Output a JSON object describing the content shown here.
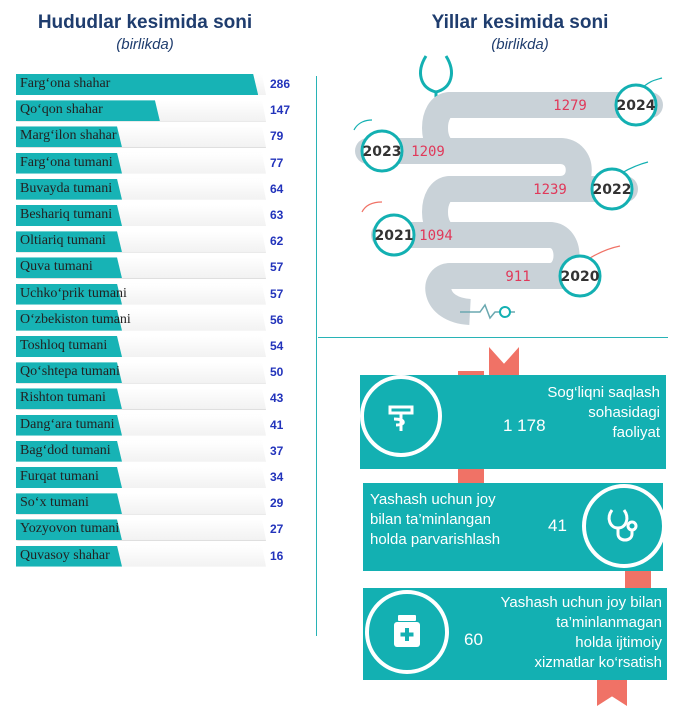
{
  "left": {
    "title": "Hududlar kesimida soni",
    "subtitle": "(birlikda)"
  },
  "right": {
    "title": "Yillar kesimida soni",
    "subtitle": "(birlikda)"
  },
  "colors": {
    "teal": "#17b3b5",
    "title_blue": "#1f3d6e",
    "value_blue": "#2233bb",
    "year_value_red": "#e0395a",
    "ribbon_coral": "#f07266",
    "timeline_grey": "#c9d2d8"
  },
  "chart_data": [
    {
      "type": "bar",
      "orientation": "horizontal",
      "title": "Hududlar kesimida soni",
      "subtitle": "(birlikda)",
      "categories": [
        "Farg‘ona shahar",
        "Qo‘qon shahar",
        "Marg‘ilon shahar",
        "Farg‘ona tumani",
        "Buvayda tumani",
        "Beshariq tumani",
        "Oltiariq tumani",
        "Quva tumani",
        "Uchko‘prik tumani",
        "O‘zbekiston tumani",
        "Toshloq tumani",
        "Qo‘shtepa tumani",
        "Rishton tumani",
        "Dang‘ara tumani",
        "Bag‘dod tumani",
        "Furqat tumani",
        "So‘x tumani",
        "Yozyovon tumani",
        "Quvasoy shahar"
      ],
      "values": [
        286,
        147,
        79,
        77,
        64,
        63,
        62,
        57,
        57,
        56,
        54,
        50,
        43,
        41,
        37,
        34,
        29,
        27,
        16
      ],
      "grid": false
    },
    {
      "type": "line",
      "title": "Yillar kesimida soni",
      "subtitle": "(birlikda)",
      "x": [
        "2024",
        "2023",
        "2022",
        "2021",
        "2020"
      ],
      "values": [
        1279,
        1209,
        1239,
        1094,
        911
      ],
      "value_labels": [
        "1279",
        "1209",
        "1239",
        "1094",
        "911"
      ]
    }
  ],
  "activities": [
    {
      "value": "1 178",
      "label_lines": [
        "Sog‘liqni saqlash",
        "sohasidagi",
        "faoliyat"
      ],
      "icon": "medical-caduceus-icon"
    },
    {
      "value": "41",
      "label_lines": [
        "Yashash uchun joy",
        "bilan ta’minlangan",
        "holda parvarishlash"
      ],
      "icon": "stethoscope-icon"
    },
    {
      "value": "60",
      "label_lines": [
        "Yashash uchun joy bilan",
        "ta’minlanmagan",
        "holda ijtimoiy",
        "xizmatlar ko‘rsatish"
      ],
      "icon": "medicine-jar-icon"
    }
  ]
}
